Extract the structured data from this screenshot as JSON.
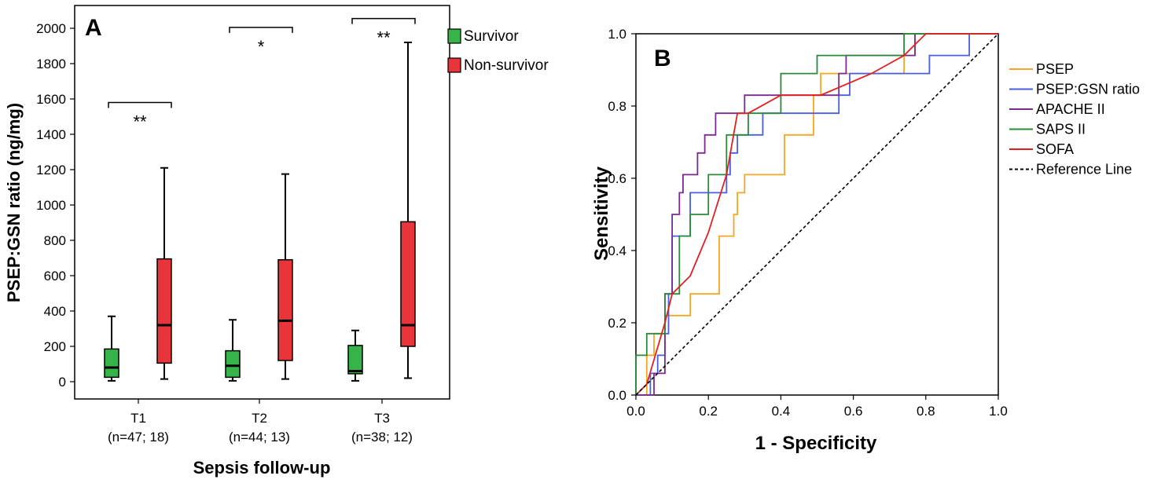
{
  "chart_data": [
    {
      "type": "box",
      "panel_label": "A",
      "xlabel": "Sepsis follow-up",
      "ylabel": "PSEP:GSN ratio (ng/mg)",
      "ylim": [
        -100,
        2100
      ],
      "yticks": [
        0,
        200,
        400,
        600,
        800,
        1000,
        1200,
        1400,
        1600,
        1800,
        2000
      ],
      "legend": [
        {
          "name": "Survivor",
          "color": "#36b44a"
        },
        {
          "name": "Non-survivor",
          "color": "#e8343a"
        }
      ],
      "categories": [
        {
          "label": "T1",
          "sublabel": "(n=47; 18)"
        },
        {
          "label": "T2",
          "sublabel": "(n=44; 13)"
        },
        {
          "label": "T3",
          "sublabel": "(n=38; 12)"
        }
      ],
      "series": [
        {
          "name": "Survivor",
          "color": "#36b44a",
          "boxes": [
            {
              "min": 5,
              "q1": 25,
              "median": 80,
              "q3": 185,
              "max": 370
            },
            {
              "min": 5,
              "q1": 25,
              "median": 90,
              "q3": 175,
              "max": 350
            },
            {
              "min": 5,
              "q1": 45,
              "median": 60,
              "q3": 205,
              "max": 290
            }
          ]
        },
        {
          "name": "Non-survivor",
          "color": "#e8343a",
          "boxes": [
            {
              "min": 15,
              "q1": 105,
              "median": 320,
              "q3": 695,
              "max": 1210
            },
            {
              "min": 15,
              "q1": 120,
              "median": 345,
              "q3": 690,
              "max": 1175
            },
            {
              "min": 20,
              "q1": 200,
              "median": 320,
              "q3": 905,
              "max": 1920
            }
          ]
        }
      ],
      "significance": [
        {
          "category_index": 0,
          "bar_y": 1580,
          "label": "**",
          "label_pos": "below"
        },
        {
          "category_index": 1,
          "bar_y": 2005,
          "label": "*",
          "label_pos": "below"
        },
        {
          "category_index": 2,
          "bar_y": 2055,
          "label": "**",
          "label_pos": "below"
        }
      ]
    },
    {
      "type": "line",
      "panel_label": "B",
      "xlabel": "1 - Specificity",
      "ylabel": "Sensitivity",
      "xlim": [
        0,
        1
      ],
      "ylim": [
        0,
        1
      ],
      "xticks": [
        "0.0",
        "0.2",
        "0.4",
        "0.6",
        "0.8",
        "1.0"
      ],
      "yticks": [
        "0.0",
        "0.2",
        "0.4",
        "0.6",
        "0.8",
        "1.0"
      ],
      "step": true,
      "series": [
        {
          "name": "PSEP",
          "color": "#f5a623",
          "x": [
            0.0,
            0.03,
            0.03,
            0.05,
            0.05,
            0.08,
            0.08,
            0.15,
            0.15,
            0.18,
            0.18,
            0.23,
            0.23,
            0.25,
            0.25,
            0.27,
            0.27,
            0.28,
            0.28,
            0.3,
            0.3,
            0.41,
            0.41,
            0.49,
            0.49,
            0.51,
            0.51,
            0.74,
            0.74,
            0.77,
            0.77,
            0.84,
            0.84,
            0.87,
            0.87,
            1.0
          ],
          "y": [
            0.0,
            0.0,
            0.11,
            0.11,
            0.17,
            0.17,
            0.22,
            0.22,
            0.28,
            0.28,
            0.28,
            0.28,
            0.44,
            0.44,
            0.44,
            0.44,
            0.5,
            0.5,
            0.56,
            0.56,
            0.61,
            0.61,
            0.72,
            0.72,
            0.83,
            0.83,
            0.89,
            0.89,
            0.94,
            0.94,
            1.0,
            1.0,
            1.0,
            1.0,
            1.0,
            1.0
          ]
        },
        {
          "name": "PSEP:GSN ratio",
          "color": "#4a5fe0",
          "x": [
            0.0,
            0.04,
            0.04,
            0.06,
            0.06,
            0.08,
            0.08,
            0.09,
            0.09,
            0.1,
            0.1,
            0.15,
            0.15,
            0.25,
            0.25,
            0.26,
            0.26,
            0.28,
            0.28,
            0.35,
            0.35,
            0.56,
            0.56,
            0.59,
            0.59,
            0.81,
            0.81,
            0.92,
            0.92,
            1.0
          ],
          "y": [
            0.0,
            0.0,
            0.06,
            0.06,
            0.11,
            0.11,
            0.17,
            0.17,
            0.28,
            0.28,
            0.44,
            0.44,
            0.56,
            0.56,
            0.61,
            0.61,
            0.67,
            0.67,
            0.72,
            0.72,
            0.78,
            0.78,
            0.83,
            0.83,
            0.89,
            0.89,
            0.94,
            0.94,
            1.0,
            1.0
          ]
        },
        {
          "name": "APACHE II",
          "color": "#7a2a8f",
          "x": [
            0.0,
            0.05,
            0.05,
            0.08,
            0.08,
            0.1,
            0.1,
            0.12,
            0.12,
            0.13,
            0.13,
            0.15,
            0.15,
            0.17,
            0.17,
            0.19,
            0.19,
            0.22,
            0.22,
            0.3,
            0.3,
            0.4,
            0.4,
            0.56,
            0.56,
            0.58,
            0.58,
            0.74,
            0.74,
            0.77,
            0.77,
            0.87,
            0.87,
            1.0
          ],
          "y": [
            0.0,
            0.0,
            0.06,
            0.06,
            0.28,
            0.28,
            0.5,
            0.5,
            0.56,
            0.56,
            0.61,
            0.61,
            0.61,
            0.61,
            0.67,
            0.67,
            0.72,
            0.72,
            0.78,
            0.78,
            0.83,
            0.83,
            0.83,
            0.83,
            0.89,
            0.89,
            0.94,
            0.94,
            0.94,
            0.94,
            1.0,
            1.0,
            1.0,
            1.0
          ]
        },
        {
          "name": "SAPS II",
          "color": "#2a8a3a",
          "x": [
            0.0,
            0.0,
            0.03,
            0.03,
            0.08,
            0.08,
            0.1,
            0.1,
            0.12,
            0.12,
            0.15,
            0.15,
            0.2,
            0.2,
            0.25,
            0.25,
            0.31,
            0.31,
            0.4,
            0.4,
            0.5,
            0.5,
            0.55,
            0.55,
            0.74,
            0.74,
            0.78,
            0.78,
            1.0
          ],
          "y": [
            0.0,
            0.11,
            0.11,
            0.17,
            0.17,
            0.28,
            0.28,
            0.28,
            0.28,
            0.44,
            0.44,
            0.5,
            0.5,
            0.61,
            0.61,
            0.72,
            0.72,
            0.78,
            0.78,
            0.89,
            0.89,
            0.94,
            0.94,
            0.94,
            0.94,
            1.0,
            1.0,
            1.0,
            1.0
          ]
        },
        {
          "name": "SOFA",
          "color": "#e02020",
          "x": [
            0.0,
            0.03,
            0.08,
            0.1,
            0.15,
            0.2,
            0.25,
            0.28,
            0.31,
            0.4,
            0.51,
            0.65,
            0.74,
            0.8,
            1.0
          ],
          "y": [
            0.0,
            0.03,
            0.2,
            0.28,
            0.33,
            0.45,
            0.61,
            0.78,
            0.78,
            0.83,
            0.83,
            0.89,
            0.94,
            1.0,
            1.0
          ]
        },
        {
          "name": "Reference Line",
          "color": "#000000",
          "dashed": true,
          "x": [
            0.0,
            1.0
          ],
          "y": [
            0.0,
            1.0
          ]
        }
      ]
    }
  ]
}
